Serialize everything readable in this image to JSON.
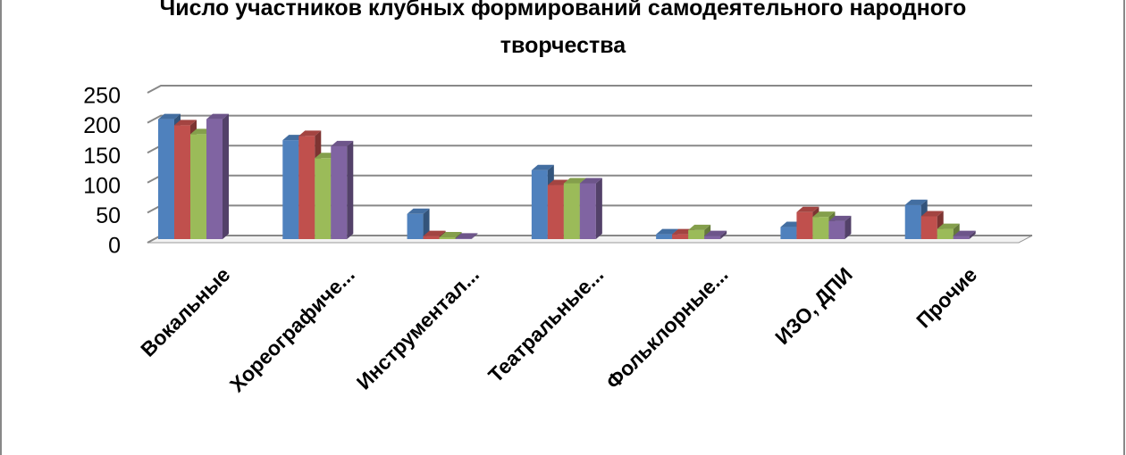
{
  "chart_data": {
    "type": "bar3d",
    "title": "Число участников клубных формирований самодеятельного народного творчества",
    "categories": [
      "Вокальные",
      "Хореографиче...",
      "Инструментал...",
      "Театральные...",
      "Фольклорные...",
      "ИЗО, ДПИ",
      "Прочие"
    ],
    "series": [
      {
        "color": "#4f81bd",
        "values": [
          200,
          165,
          42,
          115,
          8,
          20,
          57
        ]
      },
      {
        "color": "#c0504d",
        "values": [
          190,
          172,
          5,
          90,
          8,
          45,
          38
        ]
      },
      {
        "color": "#9bbb59",
        "values": [
          175,
          135,
          3,
          93,
          15,
          37,
          17
        ]
      },
      {
        "color": "#8064a2",
        "values": [
          200,
          155,
          1,
          93,
          5,
          30,
          5
        ]
      }
    ],
    "ylim": [
      0,
      250
    ],
    "yticks": [
      0,
      50,
      100,
      150,
      200,
      250
    ],
    "grid": true
  }
}
